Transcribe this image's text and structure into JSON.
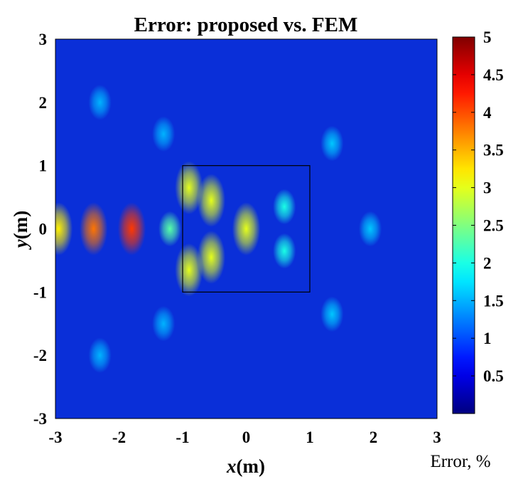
{
  "chart_data": {
    "type": "heatmap",
    "title": "Error: proposed vs. FEM",
    "xlabel_var": "x",
    "xlabel_unit": "(m)",
    "ylabel_var": "y",
    "ylabel_unit": "(m)",
    "xlim": [
      -3,
      3
    ],
    "ylim": [
      -3,
      3
    ],
    "xticks": [
      "-3",
      "-2",
      "-1",
      "0",
      "1",
      "2",
      "3"
    ],
    "yticks": [
      "3",
      "2",
      "1",
      "0",
      "-1",
      "-2",
      "-3"
    ],
    "colorbar": {
      "label": "Error, %",
      "range": [
        0,
        5
      ],
      "ticks": [
        "5",
        "4.5",
        "4",
        "3.5",
        "3",
        "2.5",
        "2",
        "1.5",
        "1",
        "0.5"
      ],
      "colormap": "jet"
    },
    "scatterer_box": {
      "x": [
        -1,
        1
      ],
      "y": [
        -1,
        1
      ]
    },
    "hotspots": [
      {
        "x": -2.95,
        "y": 0.0,
        "value": 3.2
      },
      {
        "x": -2.4,
        "y": 0.0,
        "value": 3.8
      },
      {
        "x": -1.8,
        "y": 0.0,
        "value": 4.1
      },
      {
        "x": -1.2,
        "y": 0.0,
        "value": 2.3
      },
      {
        "x": -0.9,
        "y": 0.65,
        "value": 3.0
      },
      {
        "x": -0.9,
        "y": -0.65,
        "value": 3.0
      },
      {
        "x": -0.55,
        "y": 0.45,
        "value": 3.0
      },
      {
        "x": -0.55,
        "y": -0.45,
        "value": 3.0
      },
      {
        "x": 0.0,
        "y": 0.0,
        "value": 3.0
      },
      {
        "x": 0.6,
        "y": 0.35,
        "value": 2.0
      },
      {
        "x": 0.6,
        "y": -0.35,
        "value": 2.0
      },
      {
        "x": 1.95,
        "y": 0.0,
        "value": 1.6
      },
      {
        "x": 1.35,
        "y": 1.35,
        "value": 1.6
      },
      {
        "x": 1.35,
        "y": -1.35,
        "value": 1.6
      },
      {
        "x": -1.3,
        "y": 1.5,
        "value": 1.5
      },
      {
        "x": -1.3,
        "y": -1.5,
        "value": 1.5
      },
      {
        "x": -2.3,
        "y": 2.0,
        "value": 1.5
      },
      {
        "x": -2.3,
        "y": -2.0,
        "value": 1.5
      }
    ]
  }
}
